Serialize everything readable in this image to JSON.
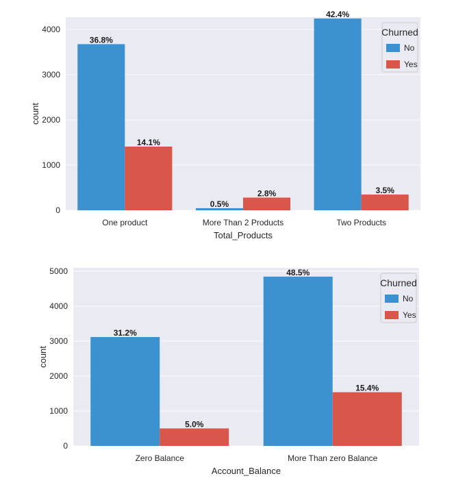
{
  "chart_data": [
    {
      "type": "bar",
      "xlabel": "Total_Products",
      "ylabel": "count",
      "ylim": [
        0,
        4400
      ],
      "yticks": [
        "0",
        "1000",
        "2000",
        "3000",
        "4000"
      ],
      "categories": [
        "One product",
        "More Than 2 Products",
        "Two Products"
      ],
      "series": [
        {
          "name": "No",
          "color": "#3c91d0",
          "values": [
            3675,
            46,
            4242
          ],
          "labels": [
            "36.8%",
            "0.5%",
            "42.4%"
          ]
        },
        {
          "name": "Yes",
          "color": "#d9564a",
          "values": [
            1409,
            280,
            348
          ],
          "labels": [
            "14.1%",
            "2.8%",
            "3.5%"
          ]
        }
      ],
      "legend": {
        "title": "Churned",
        "position": "top-right"
      },
      "grid": true
    },
    {
      "type": "bar",
      "xlabel": "Account_Balance",
      "ylabel": "count",
      "ylim": [
        0,
        5000
      ],
      "yticks": [
        "0",
        "1000",
        "2000",
        "3000",
        "4000",
        "5000"
      ],
      "categories": [
        "Zero Balance",
        "More Than zero Balance"
      ],
      "series": [
        {
          "name": "No",
          "color": "#3c91d0",
          "values": [
            3117,
            4846
          ],
          "labels": [
            "31.2%",
            "48.5%"
          ]
        },
        {
          "name": "Yes",
          "color": "#d9564a",
          "values": [
            500,
            1537
          ],
          "labels": [
            "5.0%",
            "15.4%"
          ]
        }
      ],
      "legend": {
        "title": "Churned",
        "position": "top-right"
      },
      "grid": true
    }
  ]
}
